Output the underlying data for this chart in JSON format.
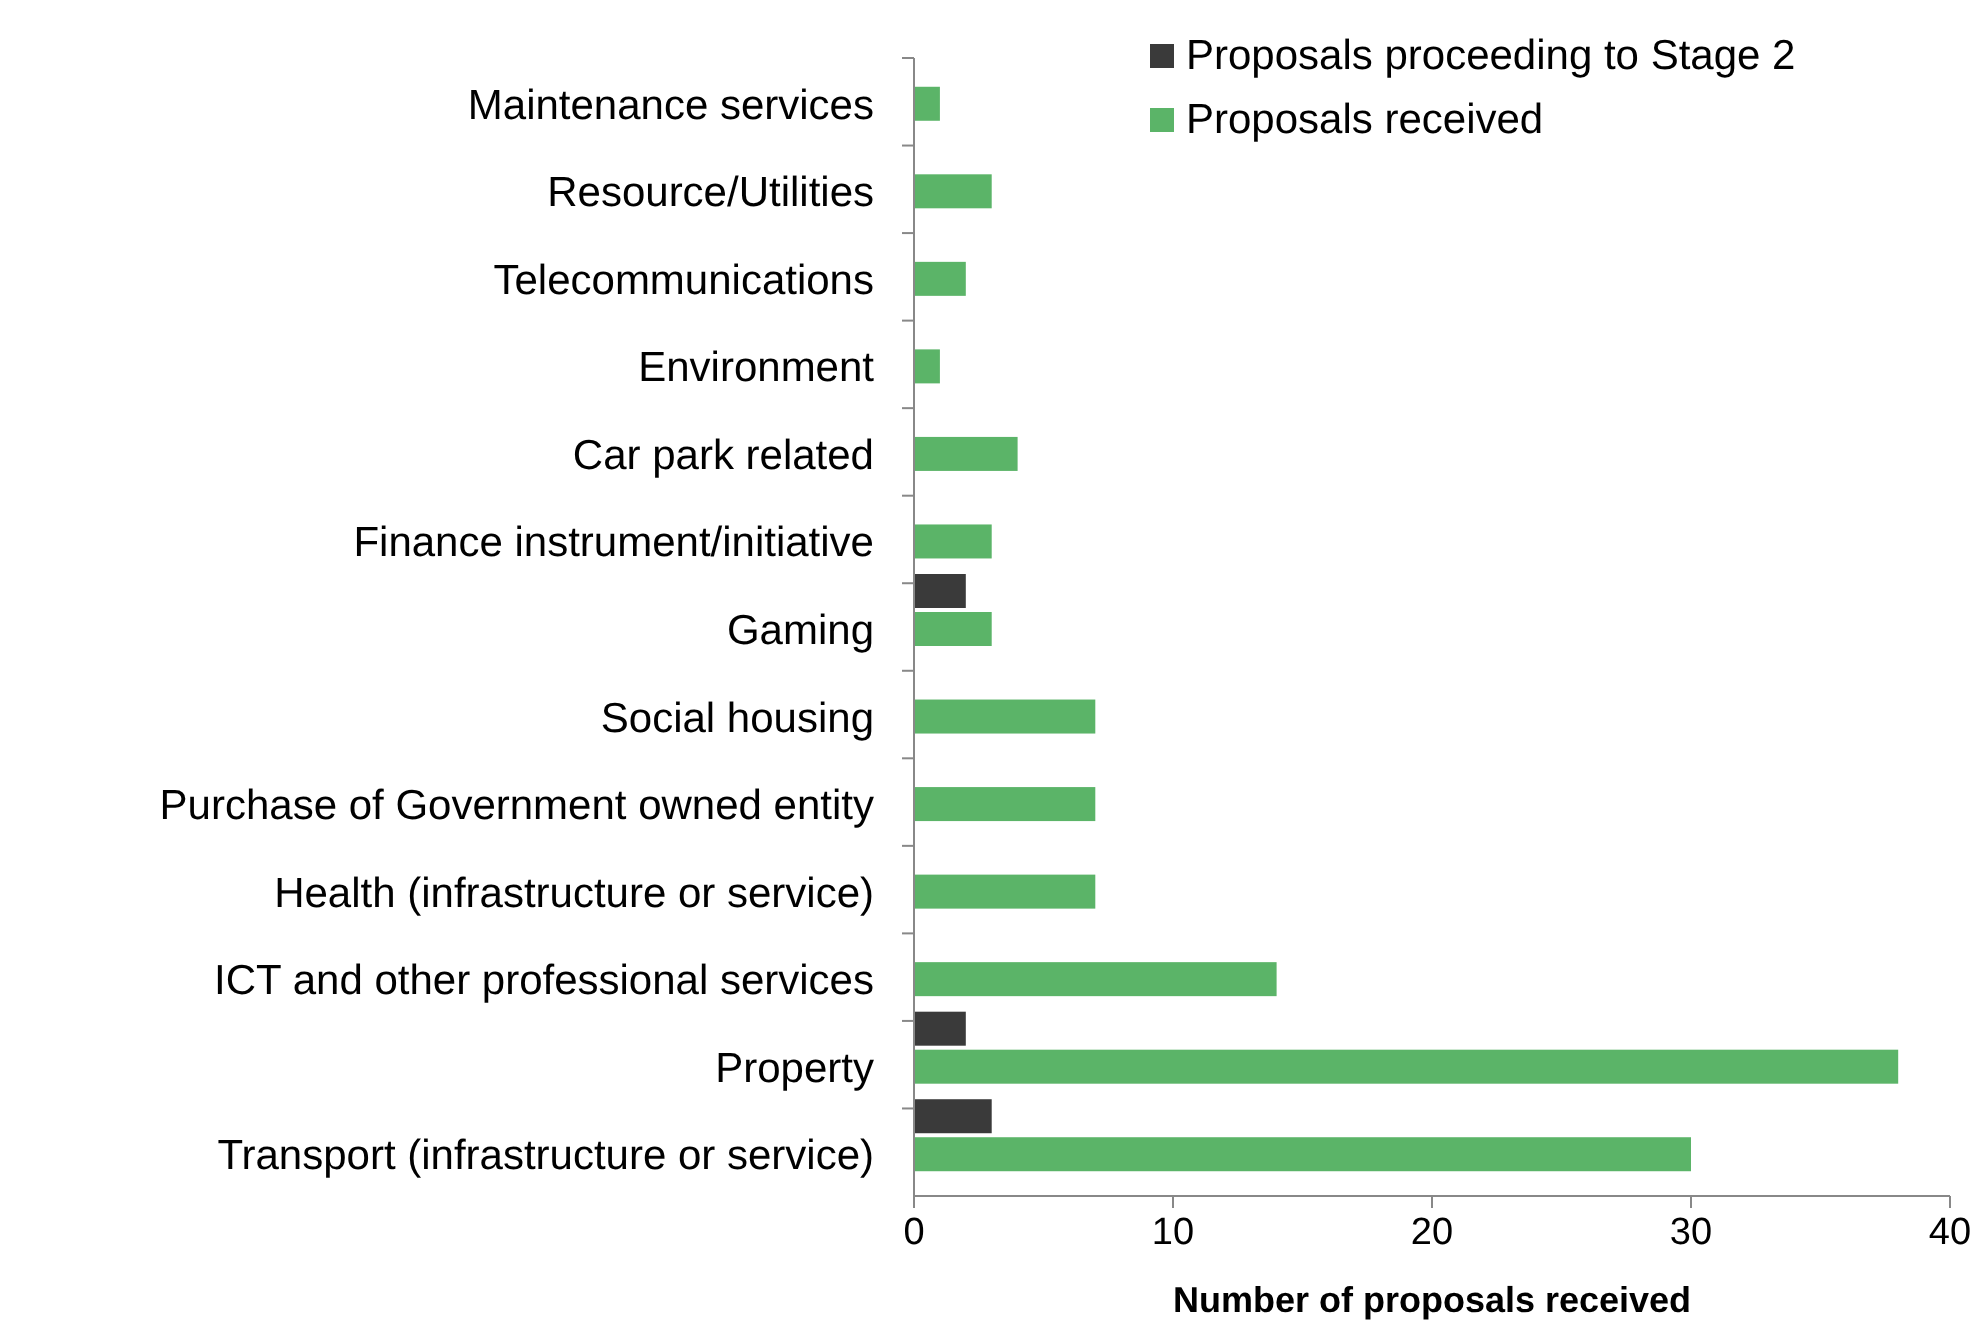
{
  "chart_data": {
    "type": "bar",
    "orientation": "horizontal",
    "xlabel": "Number of proposals  received",
    "categories": [
      "Maintenance services",
      "Resource/Utilities",
      "Telecommunications",
      "Environment",
      "Car park related",
      "Finance instrument/initiative",
      "Gaming",
      "Social housing",
      "Purchase of Government owned entity",
      "Health (infrastructure or service)",
      "ICT and other professional services",
      "Property",
      "Transport (infrastructure or service)"
    ],
    "series": [
      {
        "name": "Proposals proceeding to Stage 2",
        "color": "#3a3a3a",
        "values": [
          0,
          0,
          0,
          0,
          0,
          0,
          2,
          0,
          0,
          0,
          0,
          2,
          3
        ]
      },
      {
        "name": "Proposals received",
        "color": "#5bb468",
        "values": [
          1,
          3,
          2,
          1,
          4,
          3,
          3,
          7,
          7,
          7,
          14,
          38,
          30
        ]
      }
    ],
    "xlim": [
      0,
      40
    ],
    "xticks": [
      0,
      10,
      20,
      30,
      40
    ],
    "legend": "top right"
  }
}
